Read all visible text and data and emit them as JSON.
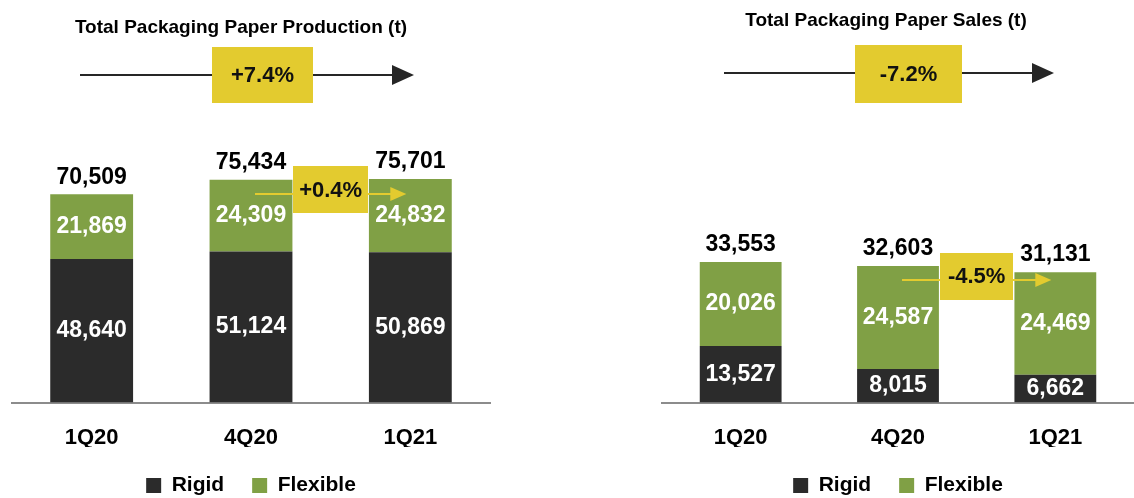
{
  "chart_data": [
    {
      "type": "bar",
      "title": "Total Packaging Paper Production (t)",
      "categories": [
        "1Q20",
        "4Q20",
        "1Q21"
      ],
      "series": [
        {
          "name": "Rigid",
          "color": "#2b2b2b",
          "values": [
            48640,
            51124,
            50869
          ],
          "value_labels": [
            "48,640",
            "51,124",
            "50,869"
          ]
        },
        {
          "name": "Flexible",
          "color": "#80a045",
          "values": [
            21869,
            24309,
            24832
          ],
          "value_labels": [
            "21,869",
            "24,309",
            "24,832"
          ]
        }
      ],
      "stacked": true,
      "totals": [
        "70,509",
        "75,434",
        "75,701"
      ],
      "annotations": [
        "+7.4%",
        "+0.4%"
      ],
      "legend": "bottom",
      "tick_labels": "x",
      "grid": false
    },
    {
      "type": "bar",
      "title": "Total Packaging Paper Sales (t)",
      "categories": [
        "1Q20",
        "4Q20",
        "1Q21"
      ],
      "series": [
        {
          "name": "Rigid",
          "color": "#2b2b2b",
          "values": [
            13527,
            8015,
            6662
          ],
          "value_labels": [
            "13,527",
            "8,015",
            "6,662"
          ]
        },
        {
          "name": "Flexible",
          "color": "#80a045",
          "values": [
            20026,
            24587,
            24469
          ],
          "value_labels": [
            "20,026",
            "24,587",
            "24,469"
          ]
        }
      ],
      "stacked": true,
      "totals": [
        "33,553",
        "32,603",
        "31,131"
      ],
      "annotations": [
        "-7.2%",
        "-4.5%"
      ],
      "legend": "bottom",
      "tick_labels": "x",
      "grid": false
    }
  ]
}
